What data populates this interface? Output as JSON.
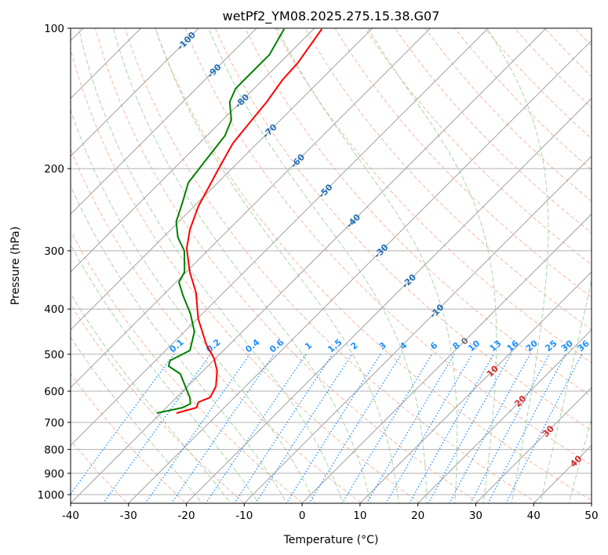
{
  "chart_data": {
    "type": "line",
    "subtype": "skew-t log-p",
    "title": "wetPf2_YM08.2025.275.15.38.G07",
    "xlabel": "Temperature (°C)",
    "ylabel": "Pressure (hPa)",
    "xlim": [
      -40,
      50
    ],
    "ylim": [
      1050,
      100
    ],
    "xticks": [
      -40,
      -30,
      -20,
      -10,
      0,
      10,
      20,
      30,
      40,
      50
    ],
    "yticks": [
      100,
      200,
      300,
      400,
      500,
      600,
      700,
      800,
      900,
      1000
    ],
    "grid": true,
    "isotherm_labels": [
      -100,
      -90,
      -80,
      -70,
      -60,
      -50,
      -40,
      -30,
      -20,
      -10,
      0,
      10,
      20,
      30,
      40
    ],
    "mixing_ratio_labels": [
      "0.1",
      "0.2",
      "0.4",
      "0.6",
      "1",
      "1.5",
      "2",
      "3",
      "4",
      "6",
      "8",
      "10",
      "13",
      "16",
      "20",
      "25",
      "30",
      "36"
    ],
    "colors": {
      "temperature": "#ff0000",
      "dewpoint": "#008000",
      "isotherm": "#a0a0a0",
      "dry_adiabat": "#f5a58a",
      "moist_adiabat": "#9fd09f",
      "mixing_ratio": "#1e90ff",
      "cold_label": "#1f6fb4",
      "zero_label": "#707070",
      "warm_label": "#d62728"
    },
    "series": [
      {
        "name": "Temperature",
        "p": [
          100.4,
          118.6,
          129.1,
          143.9,
          163.5,
          176.6,
          198.4,
          217.7,
          240.7,
          270.4,
          296.6,
          333.2,
          368.5,
          420.2,
          477.5,
          510,
          542.6,
          586.2,
          618.8,
          633.4,
          650.7,
          668.6
        ],
        "t": [
          -78.6,
          -76.9,
          -76.6,
          -75.5,
          -74.7,
          -74.2,
          -72.4,
          -70.9,
          -69.3,
          -66.7,
          -64.0,
          -59.4,
          -54.8,
          -49.8,
          -43.9,
          -40.3,
          -37.6,
          -35.1,
          -34.2,
          -35.4,
          -34.8,
          -37.3
        ]
      },
      {
        "name": "Dewpoint",
        "p": [
          100.4,
          114.1,
          124.7,
          134.7,
          143.9,
          157.3,
          169.9,
          193.8,
          214.3,
          235.2,
          260.2,
          281.1,
          300.1,
          333.2,
          350.4,
          374.2,
          409.1,
          447.1,
          490.7,
          515.9,
          530.2,
          551.1,
          595.5,
          618.8,
          638.3,
          650.7,
          668.6
        ],
        "t": [
          -85.1,
          -83.2,
          -83.2,
          -83.2,
          -81.9,
          -78.5,
          -76.9,
          -75.9,
          -75.1,
          -72.8,
          -70.4,
          -67.4,
          -64.0,
          -60.3,
          -59.5,
          -56.5,
          -52.1,
          -48.3,
          -45.8,
          -47.5,
          -46.8,
          -43.4,
          -39.6,
          -37.7,
          -36.5,
          -37.2,
          -40.7
        ]
      }
    ]
  }
}
